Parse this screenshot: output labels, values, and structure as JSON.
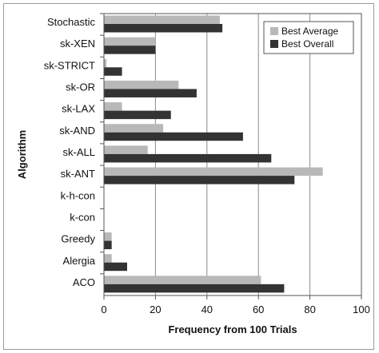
{
  "chart_data": {
    "type": "bar",
    "orientation": "horizontal",
    "categories": [
      "Stochastic",
      "sk-XEN",
      "sk-STRICT",
      "sk-OR",
      "sk-LAX",
      "sk-AND",
      "sk-ALL",
      "sk-ANT",
      "k-h-con",
      "k-con",
      "Greedy",
      "Alergia",
      "ACO"
    ],
    "series": [
      {
        "name": "Best Average",
        "color": "#b8b8b8",
        "values": [
          45,
          20,
          1,
          29,
          7,
          23,
          17,
          85,
          0,
          0,
          3,
          3,
          61
        ]
      },
      {
        "name": "Best Overall",
        "color": "#333333",
        "values": [
          46,
          20,
          7,
          36,
          26,
          54,
          65,
          74,
          0,
          0,
          3,
          9,
          70
        ]
      }
    ],
    "xlabel": "Frequency from 100 Trials",
    "ylabel": "Algorithm",
    "xlim": [
      0,
      100
    ],
    "xticks": [
      0,
      20,
      40,
      60,
      80,
      100
    ],
    "grid": "vertical",
    "legend_position": "top-right"
  }
}
